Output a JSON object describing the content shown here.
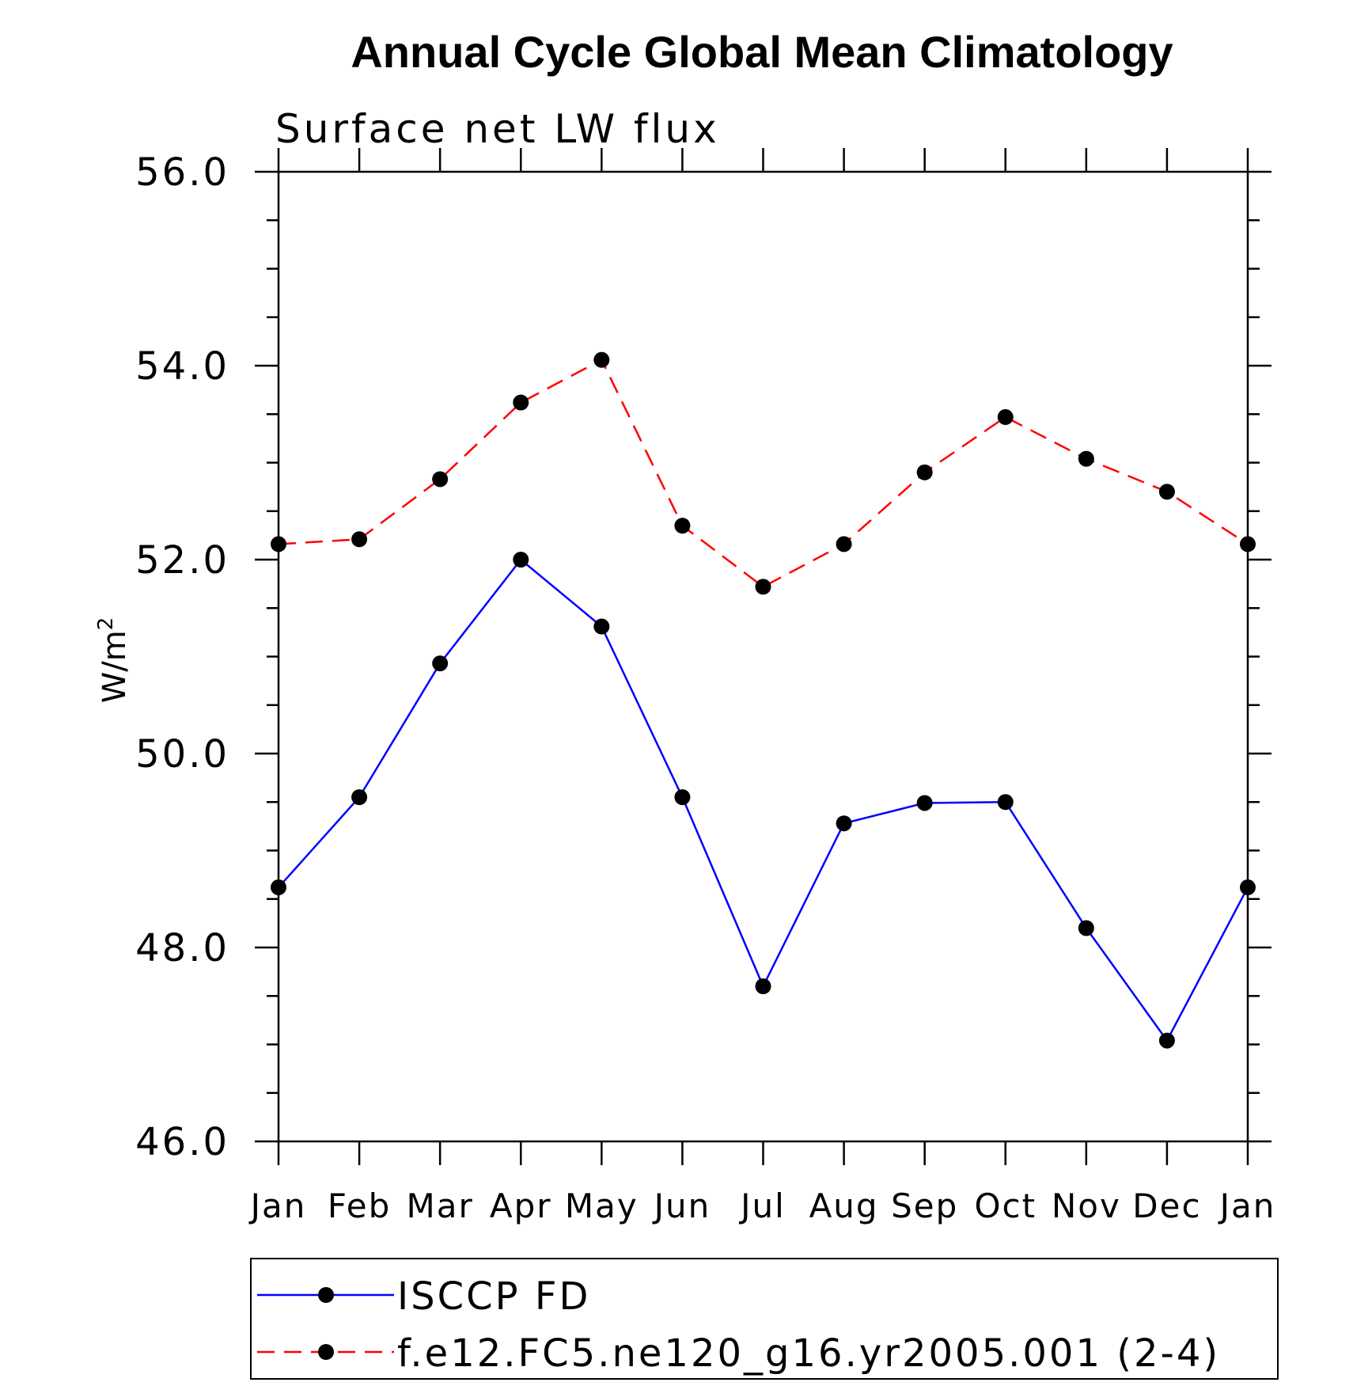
{
  "chart_data": {
    "type": "line",
    "title": "Annual Cycle Global Mean Climatology",
    "subtitle": "Surface net LW flux",
    "ylabel_base": "W/m",
    "ylabel_sup": "2",
    "xlabel": "",
    "ylim": [
      46.0,
      56.0
    ],
    "yticks": [
      46.0,
      48.0,
      50.0,
      52.0,
      54.0,
      56.0
    ],
    "ytick_labels": [
      "46.0",
      "48.0",
      "50.0",
      "52.0",
      "54.0",
      "56.0"
    ],
    "categories": [
      "Jan",
      "Feb",
      "Mar",
      "Apr",
      "May",
      "Jun",
      "Jul",
      "Aug",
      "Sep",
      "Oct",
      "Nov",
      "Dec",
      "Jan"
    ],
    "grid": false,
    "legend_position": "bottom",
    "series": [
      {
        "name": "ISCCP FD",
        "color": "#0000ff",
        "line_style": "solid",
        "marker": "filled-circle",
        "values": [
          48.62,
          49.55,
          50.93,
          52.0,
          51.31,
          49.55,
          47.6,
          49.28,
          49.49,
          49.5,
          48.2,
          47.04,
          48.62
        ]
      },
      {
        "name": "f.e12.FC5.ne120_g16.yr2005.001 (2-4)",
        "color": "#ff0000",
        "line_style": "dashed",
        "marker": "filled-circle",
        "values": [
          52.16,
          52.21,
          52.83,
          53.62,
          54.06,
          52.35,
          51.72,
          52.16,
          52.9,
          53.47,
          53.04,
          52.7,
          52.16
        ]
      }
    ]
  }
}
